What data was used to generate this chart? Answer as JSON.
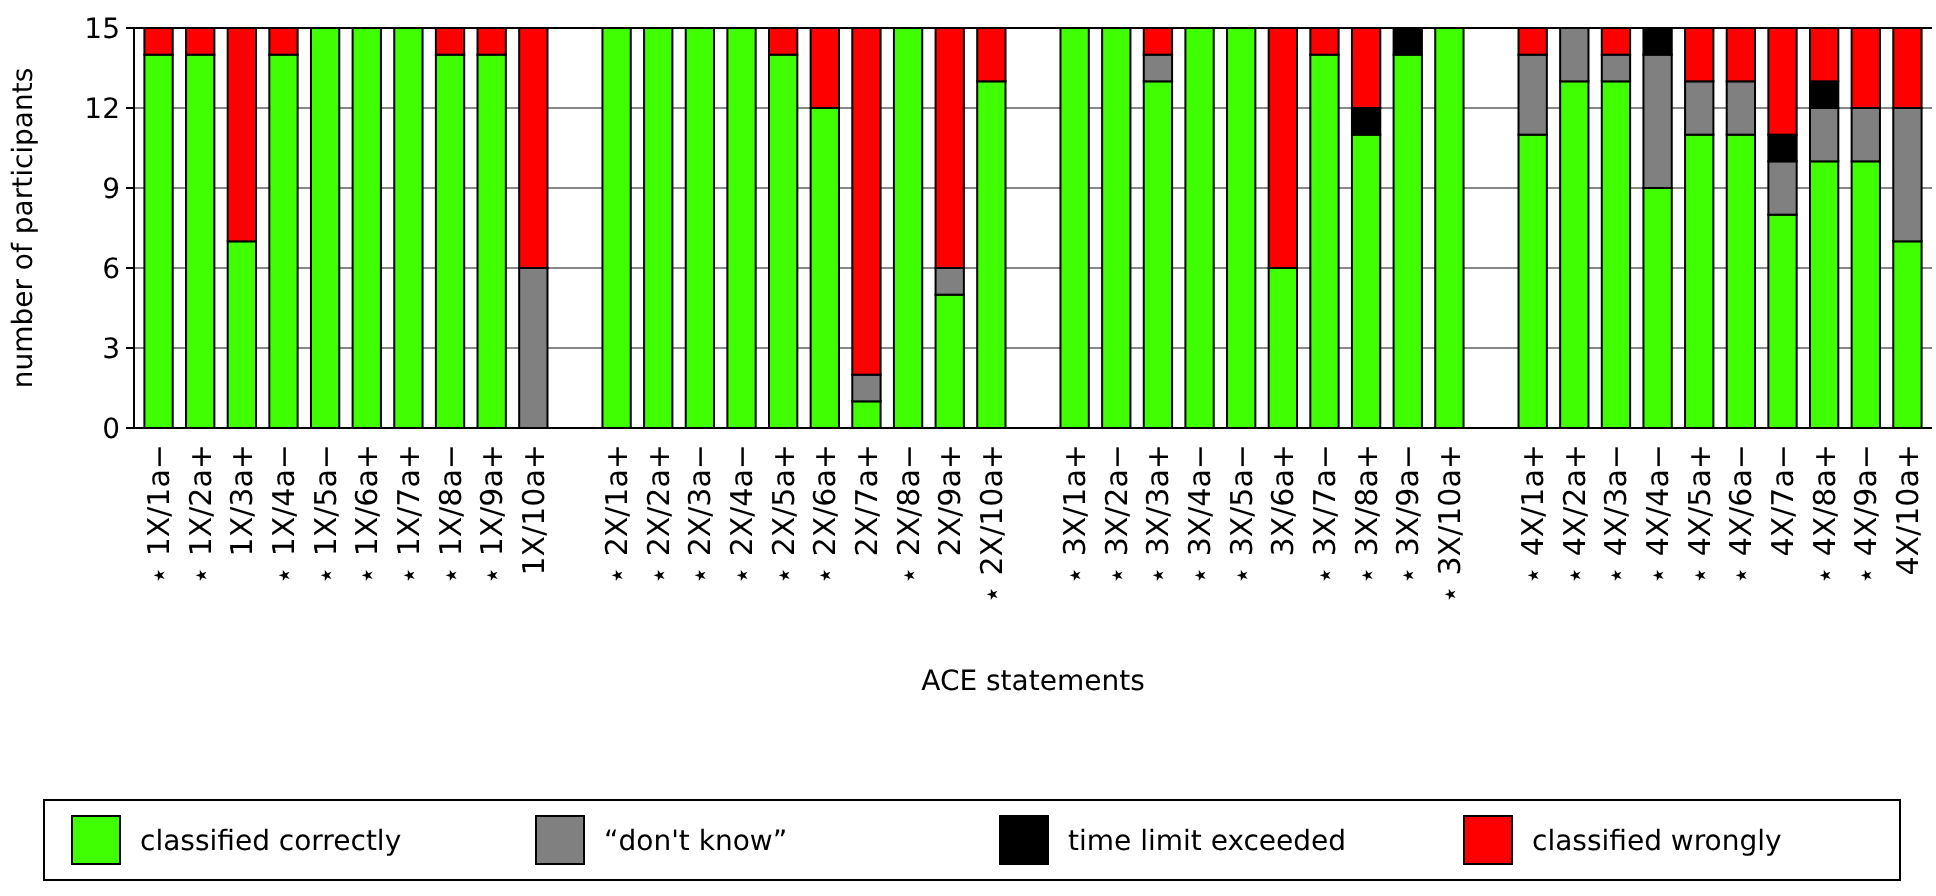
{
  "chart_data": {
    "type": "bar",
    "stacked": true,
    "xlabel": "ACE statements",
    "ylabel": "number of participants",
    "categories": [
      "⋆ 1X/1a−",
      "⋆ 1X/2a+",
      "1X/3a+",
      "⋆ 1X/4a−",
      "⋆ 1X/5a−",
      "⋆ 1X/6a+",
      "⋆ 1X/7a+",
      "⋆ 1X/8a−",
      "⋆ 1X/9a+",
      "1X/10a+",
      null,
      "⋆ 2X/1a+",
      "⋆ 2X/2a+",
      "⋆ 2X/3a−",
      "⋆ 2X/4a−",
      "⋆ 2X/5a+",
      "⋆ 2X/6a+",
      "2X/7a+",
      "⋆ 2X/8a−",
      "2X/9a+",
      "⋆ 2X/10a+",
      null,
      "⋆ 3X/1a+",
      "⋆ 3X/2a−",
      "⋆ 3X/3a+",
      "⋆ 3X/4a−",
      "⋆ 3X/5a−",
      "3X/6a+",
      "⋆ 3X/7a−",
      "⋆ 3X/8a+",
      "⋆ 3X/9a−",
      "⋆ 3X/10a+",
      null,
      "⋆ 4X/1a+",
      "⋆ 4X/2a+",
      "⋆ 4X/3a−",
      "⋆ 4X/4a−",
      "⋆ 4X/5a+",
      "⋆ 4X/6a−",
      "4X/7a−",
      "⋆ 4X/8a+",
      "⋆ 4X/9a−",
      "4X/10a+"
    ],
    "series": [
      {
        "name": "classified correctly",
        "color": "#40ff00",
        "values": [
          14,
          14,
          7,
          14,
          15,
          15,
          15,
          14,
          14,
          0,
          null,
          15,
          15,
          15,
          15,
          14,
          12,
          1,
          15,
          5,
          13,
          null,
          15,
          15,
          13,
          15,
          15,
          6,
          14,
          11,
          14,
          15,
          null,
          11,
          13,
          13,
          9,
          11,
          11,
          8,
          10,
          10,
          7
        ]
      },
      {
        "name": "“don't know”",
        "color": "#808080",
        "values": [
          0,
          0,
          0,
          0,
          0,
          0,
          0,
          0,
          0,
          6,
          null,
          0,
          0,
          0,
          0,
          0,
          0,
          1,
          0,
          1,
          0,
          null,
          0,
          0,
          1,
          0,
          0,
          0,
          0,
          0,
          0,
          0,
          null,
          3,
          2,
          1,
          5,
          2,
          2,
          2,
          2,
          2,
          5
        ]
      },
      {
        "name": "time limit exceeded",
        "color": "#000000",
        "values": [
          0,
          0,
          0,
          0,
          0,
          0,
          0,
          0,
          0,
          0,
          null,
          0,
          0,
          0,
          0,
          0,
          0,
          0,
          0,
          0,
          0,
          null,
          0,
          0,
          0,
          0,
          0,
          0,
          0,
          1,
          1,
          0,
          null,
          0,
          0,
          0,
          1,
          0,
          0,
          1,
          1,
          0,
          0
        ]
      },
      {
        "name": "classified wrongly",
        "color": "#ff0000",
        "values": [
          1,
          1,
          8,
          1,
          0,
          0,
          0,
          1,
          1,
          9,
          null,
          0,
          0,
          0,
          0,
          1,
          3,
          13,
          0,
          9,
          2,
          null,
          0,
          0,
          1,
          0,
          0,
          9,
          1,
          3,
          0,
          0,
          null,
          1,
          0,
          1,
          0,
          2,
          2,
          4,
          2,
          3,
          3
        ]
      }
    ],
    "ylim": [
      0,
      15
    ],
    "yticks": [
      0,
      3,
      6,
      9,
      12,
      15
    ],
    "grid": "y",
    "legend": "bottom"
  }
}
